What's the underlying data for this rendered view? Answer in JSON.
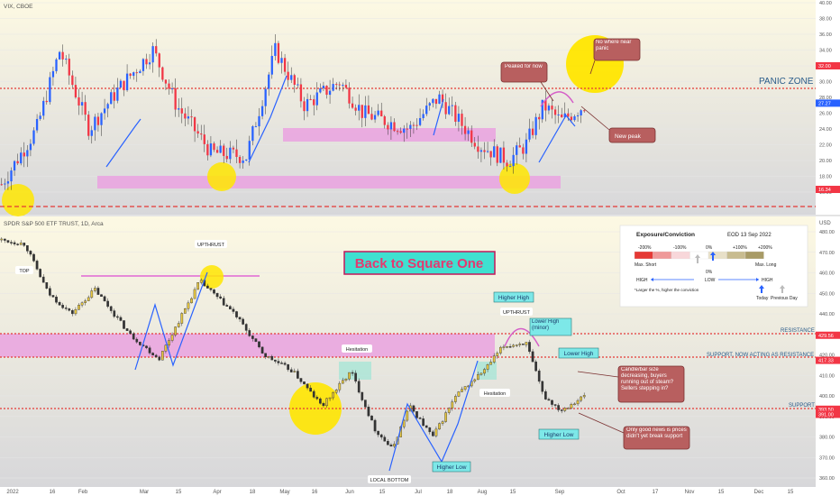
{
  "top_pane": {
    "symbol_label": "VIX, CBOE",
    "y_ticks": [
      "40.00",
      "38.00",
      "36.00",
      "34.00",
      "32.00",
      "30.00",
      "28.00",
      "26.00",
      "24.00",
      "22.00",
      "20.00",
      "18.00",
      "16.00"
    ],
    "y_tick_values": [
      40,
      38,
      36,
      34,
      32,
      30,
      28,
      26,
      24,
      22,
      20,
      18,
      16
    ],
    "price_tags": [
      {
        "value": 32.0,
        "text": "32.00",
        "color": "#f23645"
      },
      {
        "value": 27.27,
        "text": "27.27",
        "color": "#2962ff"
      },
      {
        "value": 16.34,
        "text": "16.34",
        "color": "#f23645"
      }
    ],
    "panic_zone_label": "PANIC ZONE",
    "callouts": {
      "no_panic": "No where near panic",
      "peaked": "Peaked for now",
      "new_peak": "New peak"
    }
  },
  "bottom_pane": {
    "symbol_label": "SPDR S&P 500 ETF TRUST, 1D, Arca",
    "currency": "USD",
    "y_ticks": [
      "480.00",
      "470.00",
      "460.00",
      "450.00",
      "440.00",
      "430.00",
      "420.00",
      "410.00",
      "400.00",
      "390.00",
      "380.00",
      "370.00",
      "360.00"
    ],
    "y_tick_values": [
      480,
      470,
      460,
      450,
      440,
      430,
      420,
      410,
      400,
      390,
      380,
      370,
      360
    ],
    "price_tags": [
      {
        "value": 429.56,
        "text": "429.56",
        "color": "#f23645"
      },
      {
        "value": 417.33,
        "text": "417.33",
        "color": "#f23645"
      },
      {
        "value": 393.5,
        "text": "393.50",
        "color": "#f23645"
      },
      {
        "value": 391.0,
        "text": "391.00",
        "color": "#f23645"
      }
    ],
    "title_box": "Back to Square One",
    "level_labels": {
      "resistance": "RESISTANCE",
      "support_resistance": "SUPPORT, NOW ACTING AS RESISTANCE",
      "support": "SUPPORT"
    },
    "annotations": {
      "top": "TOP",
      "upthrust_1": "UPTHRUST",
      "upthrust_2": "UPTHRUST",
      "hesitation_1": "Hesitation",
      "hesitation_2": "Hesitation",
      "local_bottom": "LOCAL BOTTOM",
      "higher_low_1": "Higher Low",
      "higher_low_2": "Higher Low",
      "higher_high": "Higher High",
      "lower_high_minor": "Lower High (minor)",
      "lower_high": "Lower High",
      "candle_note": "Candle/bar size decreasing, buyers running out of steam? Sellers stepping in?",
      "good_news_note": "Only good news is prices didn't yet break support"
    },
    "legend": {
      "title": "Exposure/Conviction",
      "date": "EOD 13 Sep 2022",
      "scale_labels": [
        "-200%",
        "-100%",
        "0%",
        "+100%",
        "+200%"
      ],
      "max_short": "Max. Short",
      "max_long": "Max. Long",
      "zero": "0%",
      "high_left": "HIGH",
      "low": "LOW",
      "high_right": "HIGH",
      "note": "*Larger the %, higher the conviction",
      "today": "Today",
      "previous_day": "Previous Day",
      "colors": [
        "#e53935",
        "#ef9a9a",
        "#f8d7da",
        "#ffffff",
        "#e8e0c8",
        "#c8bc90",
        "#a89b66"
      ]
    }
  },
  "x_axis_labels": [
    "2022",
    "16",
    "Feb",
    "Mar",
    "15",
    "Apr",
    "18",
    "May",
    "16",
    "Jun",
    "15",
    "Jul",
    "18",
    "Aug",
    "15",
    "Sep",
    "Oct",
    "17",
    "Nov",
    "15",
    "Dec",
    "15"
  ],
  "colors": {
    "up_candle": "#2962ff",
    "down_candle": "#f23645",
    "spy_up": "#e8c840",
    "spy_down": "#333333",
    "pink_zone": "#f1a5e0",
    "callout_fill": "#b85f5f",
    "yellow_highlight": "#ffe600",
    "label_cyan": "#7de8e8"
  }
}
